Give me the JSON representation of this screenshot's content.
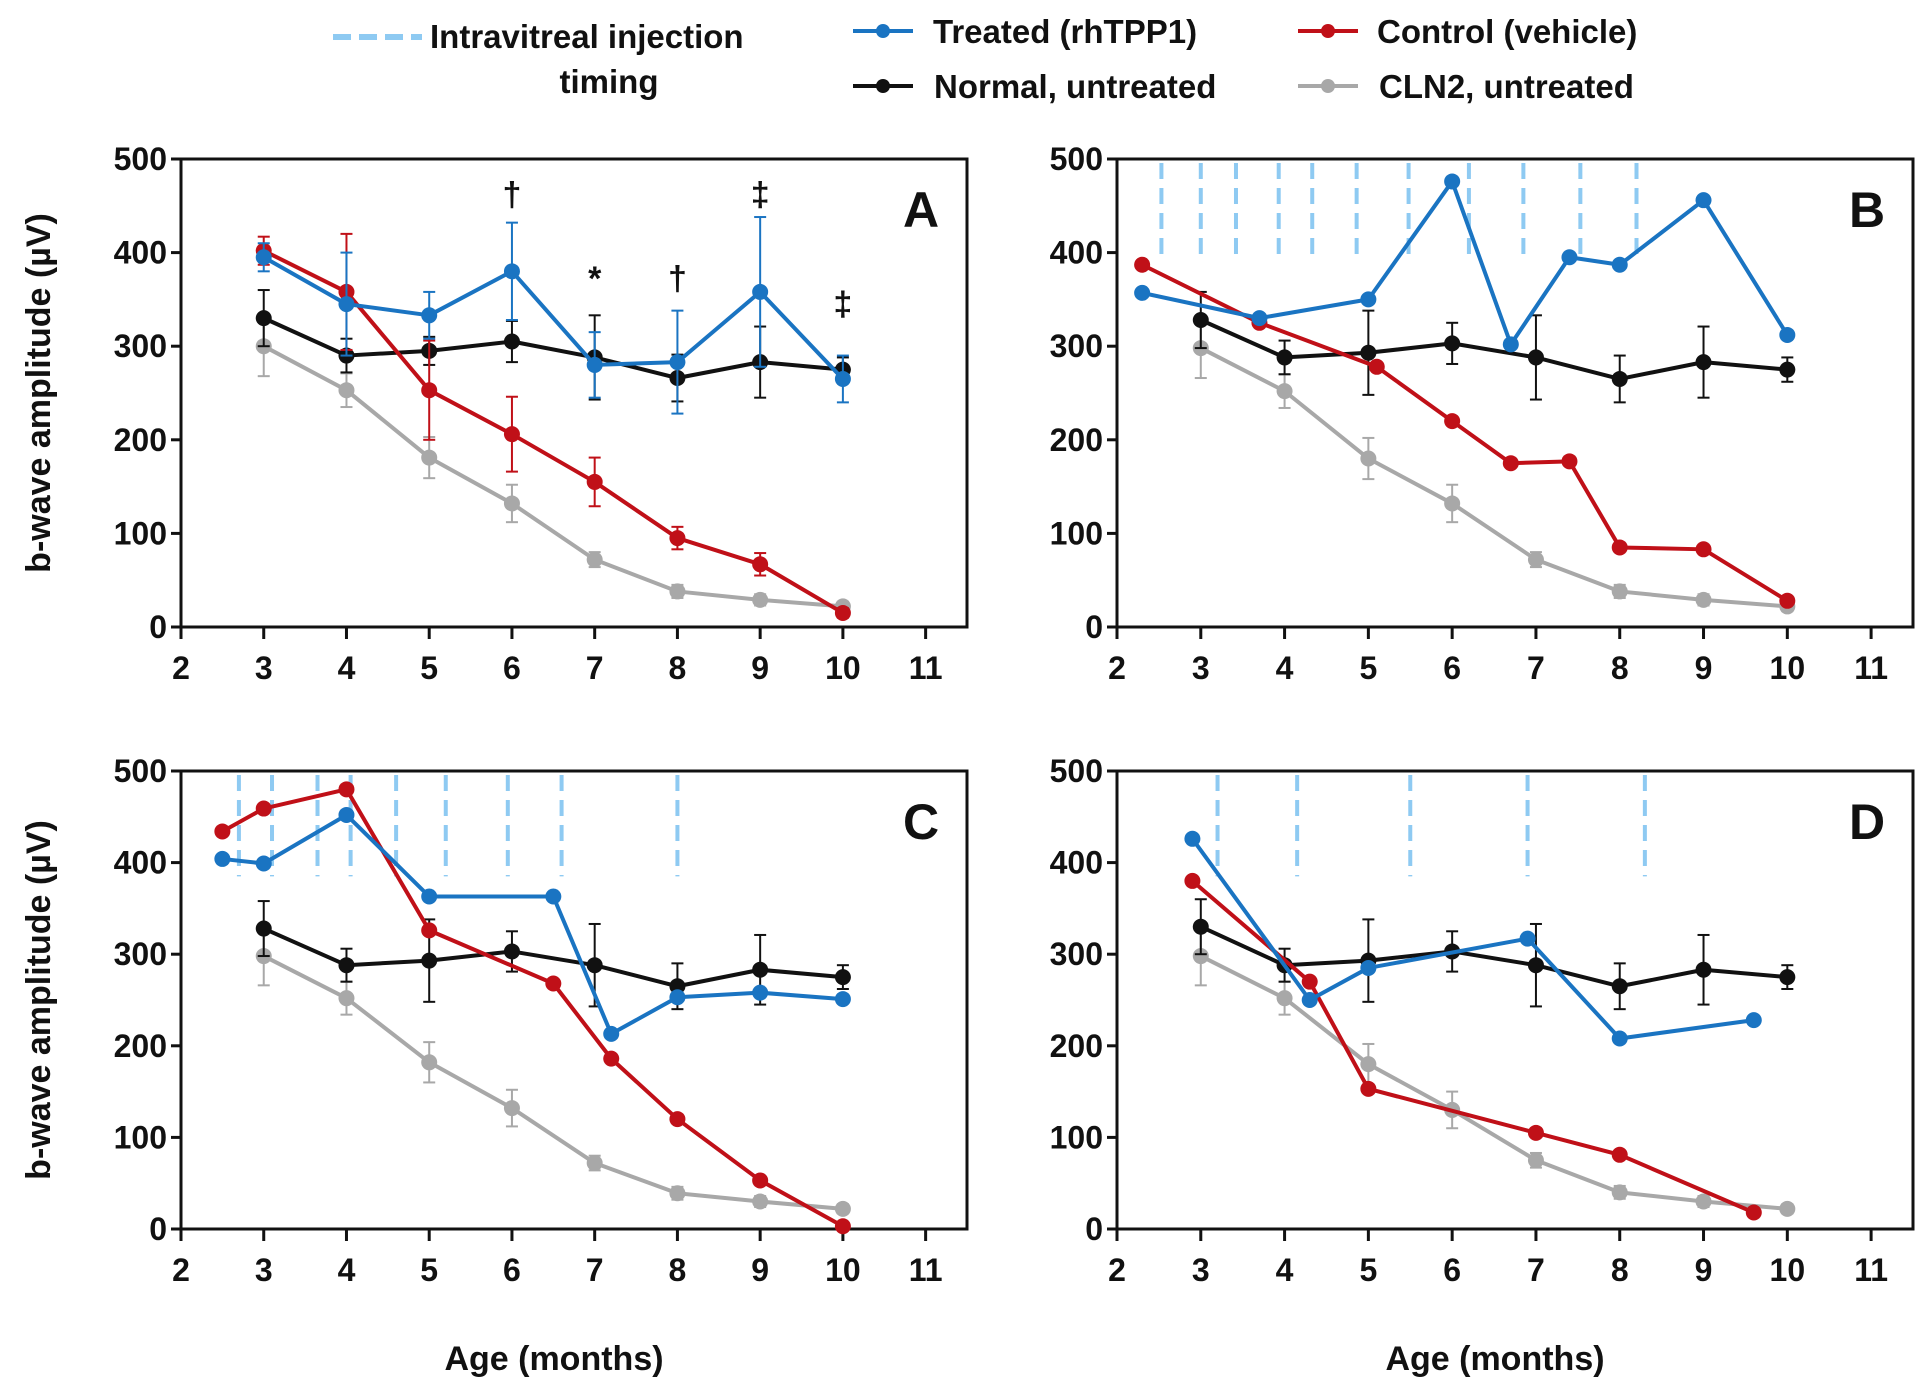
{
  "legend": {
    "injection": "Intravitreal injection",
    "injection_line2": "timing",
    "treated": "Treated (rhTPP1)",
    "control": "Control (vehicle)",
    "normal": "Normal, untreated",
    "cln2": "CLN2, untreated"
  },
  "colors": {
    "treated": "#1a74c2",
    "control": "#c01018",
    "normal": "#111111",
    "cln2": "#a8a8a8",
    "injection": "#8ecaf2"
  },
  "chart_data": [
    {
      "type": "line",
      "panel": "A",
      "xlabel": "",
      "ylabel": "b-wave amplitude (µV)",
      "xlim": [
        2,
        11.5
      ],
      "ylim": [
        0,
        500
      ],
      "xticks": [
        2,
        3,
        4,
        5,
        6,
        7,
        8,
        9,
        10,
        11
      ],
      "yticks": [
        0,
        100,
        200,
        300,
        400,
        500
      ],
      "injections": [],
      "annotations": [
        {
          "x": 6,
          "y": 465,
          "text": "†"
        },
        {
          "x": 7,
          "y": 375,
          "text": "*"
        },
        {
          "x": 8,
          "y": 375,
          "text": "†"
        },
        {
          "x": 9,
          "y": 465,
          "text": "‡"
        },
        {
          "x": 10,
          "y": 348,
          "text": "‡"
        }
      ],
      "series": [
        {
          "name": "treated",
          "x": [
            3,
            4,
            5,
            6,
            7,
            8,
            9,
            10
          ],
          "y": [
            395,
            345,
            333,
            380,
            280,
            283,
            358,
            265
          ],
          "err": [
            15,
            55,
            25,
            52,
            35,
            55,
            80,
            25
          ]
        },
        {
          "name": "control",
          "x": [
            3,
            4,
            5,
            6,
            7,
            8,
            9,
            10
          ],
          "y": [
            402,
            358,
            253,
            206,
            155,
            95,
            67,
            15
          ],
          "err": [
            15,
            62,
            53,
            40,
            26,
            12,
            12,
            5
          ]
        },
        {
          "name": "normal",
          "x": [
            3,
            4,
            5,
            6,
            7,
            8,
            9,
            10
          ],
          "y": [
            330,
            290,
            295,
            305,
            288,
            266,
            283,
            275
          ],
          "err": [
            30,
            18,
            15,
            22,
            45,
            25,
            38,
            13
          ]
        },
        {
          "name": "cln2",
          "x": [
            3,
            4,
            5,
            6,
            7,
            8,
            9,
            10
          ],
          "y": [
            300,
            253,
            181,
            132,
            72,
            38,
            29,
            22
          ],
          "err": [
            32,
            18,
            22,
            20,
            8,
            7,
            6,
            5
          ]
        }
      ]
    },
    {
      "type": "line",
      "panel": "B",
      "xlabel": "",
      "ylabel": "",
      "xlim": [
        2,
        11.5
      ],
      "ylim": [
        0,
        500
      ],
      "xticks": [
        2,
        3,
        4,
        5,
        6,
        7,
        8,
        9,
        10,
        11
      ],
      "yticks": [
        0,
        100,
        200,
        300,
        400,
        500
      ],
      "injections": [
        2.53,
        3.0,
        3.42,
        3.93,
        4.33,
        4.86,
        5.48,
        6.2,
        6.85,
        7.53,
        8.2
      ],
      "injection_top": 500,
      "injection_bottom": 390,
      "annotations": [],
      "series": [
        {
          "name": "treated",
          "x": [
            2.3,
            3.7,
            5.0,
            6.0,
            6.7,
            7.4,
            8.0,
            9.0,
            10.0
          ],
          "y": [
            357,
            330,
            350,
            476,
            302,
            395,
            387,
            456,
            312
          ]
        },
        {
          "name": "control",
          "x": [
            2.3,
            3.7,
            5.1,
            6.0,
            6.7,
            7.4,
            8.0,
            9.0,
            10.0
          ],
          "y": [
            387,
            325,
            278,
            220,
            175,
            177,
            85,
            83,
            28
          ]
        },
        {
          "name": "normal",
          "x": [
            3,
            4,
            5,
            6,
            7,
            8,
            9,
            10
          ],
          "y": [
            328,
            288,
            293,
            303,
            288,
            265,
            283,
            275
          ],
          "err": [
            30,
            18,
            45,
            22,
            45,
            25,
            38,
            13
          ]
        },
        {
          "name": "cln2",
          "x": [
            3,
            4,
            5,
            6,
            7,
            8,
            9,
            10
          ],
          "y": [
            298,
            252,
            180,
            132,
            72,
            38,
            29,
            22
          ],
          "err": [
            32,
            18,
            22,
            20,
            8,
            7,
            6,
            5
          ]
        }
      ]
    },
    {
      "type": "line",
      "panel": "C",
      "xlabel": "Age (months)",
      "ylabel": "b-wave amplitude (µV)",
      "xlim": [
        2,
        11.5
      ],
      "ylim": [
        0,
        500
      ],
      "xticks": [
        2,
        3,
        4,
        5,
        6,
        7,
        8,
        9,
        10,
        11
      ],
      "yticks": [
        0,
        100,
        200,
        300,
        400,
        500
      ],
      "injections": [
        2.7,
        3.1,
        3.65,
        4.05,
        4.6,
        5.2,
        5.95,
        6.6,
        8.0
      ],
      "injection_top": 500,
      "injection_bottom": 385,
      "annotations": [],
      "series": [
        {
          "name": "treated",
          "x": [
            2.5,
            3,
            4,
            5,
            6.5,
            7.2,
            8,
            9,
            10
          ],
          "y": [
            404,
            399,
            452,
            363,
            363,
            213,
            253,
            258,
            251
          ]
        },
        {
          "name": "control",
          "x": [
            2.5,
            3,
            4,
            5,
            6.5,
            7.2,
            8,
            9,
            10
          ],
          "y": [
            434,
            459,
            480,
            326,
            268,
            186,
            120,
            53,
            3
          ]
        },
        {
          "name": "normal",
          "x": [
            3,
            4,
            5,
            6,
            7,
            8,
            9,
            10
          ],
          "y": [
            328,
            288,
            293,
            303,
            288,
            265,
            283,
            275
          ],
          "err": [
            30,
            18,
            45,
            22,
            45,
            25,
            38,
            13
          ]
        },
        {
          "name": "cln2",
          "x": [
            3,
            4,
            5,
            6,
            7,
            8,
            9,
            10
          ],
          "y": [
            298,
            252,
            182,
            132,
            72,
            39,
            30,
            22
          ],
          "err": [
            32,
            18,
            22,
            20,
            8,
            7,
            6,
            5
          ]
        }
      ]
    },
    {
      "type": "line",
      "panel": "D",
      "xlabel": "Age (months)",
      "ylabel": "",
      "xlim": [
        2,
        11.5
      ],
      "ylim": [
        0,
        500
      ],
      "xticks": [
        2,
        3,
        4,
        5,
        6,
        7,
        8,
        9,
        10,
        11
      ],
      "yticks": [
        0,
        100,
        200,
        300,
        400,
        500
      ],
      "injections": [
        3.2,
        4.15,
        5.5,
        6.9,
        8.3
      ],
      "injection_top": 500,
      "injection_bottom": 385,
      "annotations": [],
      "series": [
        {
          "name": "treated",
          "x": [
            2.9,
            4.3,
            5,
            6.9,
            8,
            9.6
          ],
          "y": [
            426,
            250,
            285,
            317,
            208,
            228
          ]
        },
        {
          "name": "control",
          "x": [
            2.9,
            4.3,
            5,
            7,
            8,
            9.6
          ],
          "y": [
            380,
            270,
            153,
            105,
            81,
            18
          ]
        },
        {
          "name": "normal",
          "x": [
            3,
            4,
            5,
            6,
            7,
            8,
            9,
            10
          ],
          "y": [
            330,
            288,
            293,
            303,
            288,
            265,
            283,
            275
          ],
          "err": [
            30,
            18,
            45,
            22,
            45,
            25,
            38,
            13
          ]
        },
        {
          "name": "cln2",
          "x": [
            3,
            4,
            5,
            6,
            7,
            8,
            9,
            10
          ],
          "y": [
            298,
            252,
            180,
            130,
            75,
            40,
            30,
            22
          ],
          "err": [
            32,
            18,
            22,
            20,
            8,
            7,
            6,
            5
          ]
        }
      ]
    }
  ]
}
